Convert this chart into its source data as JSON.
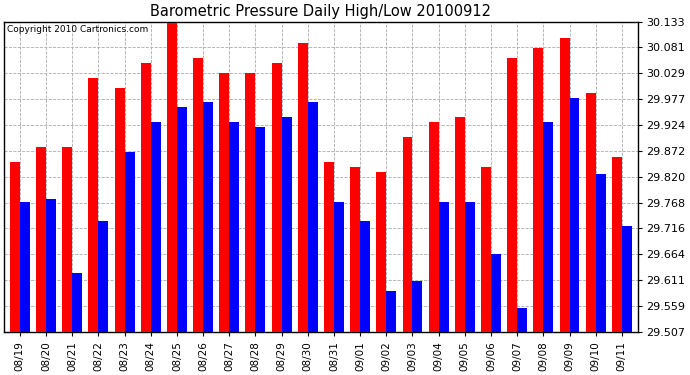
{
  "title": "Barometric Pressure Daily High/Low 20100912",
  "copyright": "Copyright 2010 Cartronics.com",
  "labels": [
    "08/19",
    "08/20",
    "08/21",
    "08/22",
    "08/23",
    "08/24",
    "08/25",
    "08/26",
    "08/27",
    "08/28",
    "08/29",
    "08/30",
    "08/31",
    "09/01",
    "09/02",
    "09/03",
    "09/04",
    "09/05",
    "09/06",
    "09/07",
    "09/08",
    "09/09",
    "09/10",
    "09/11"
  ],
  "highs": [
    29.85,
    29.88,
    29.88,
    30.02,
    30.0,
    30.05,
    30.13,
    30.06,
    30.03,
    30.03,
    30.05,
    30.09,
    29.85,
    29.84,
    29.83,
    29.9,
    29.93,
    29.94,
    29.84,
    30.06,
    30.08,
    30.1,
    29.99,
    29.86
  ],
  "lows": [
    29.77,
    29.775,
    29.625,
    29.73,
    29.87,
    29.93,
    29.96,
    29.97,
    29.93,
    29.92,
    29.94,
    29.97,
    29.77,
    29.73,
    29.59,
    29.61,
    29.77,
    29.77,
    29.665,
    29.555,
    29.93,
    29.98,
    29.825,
    29.72
  ],
  "bar_color_high": "#ff0000",
  "bar_color_low": "#0000ff",
  "background_color": "#ffffff",
  "grid_color": "#aaaaaa",
  "ymin": 29.507,
  "ymax": 30.133,
  "yticks": [
    29.507,
    29.559,
    29.611,
    29.664,
    29.716,
    29.768,
    29.82,
    29.872,
    29.924,
    29.977,
    30.029,
    30.081,
    30.133
  ]
}
